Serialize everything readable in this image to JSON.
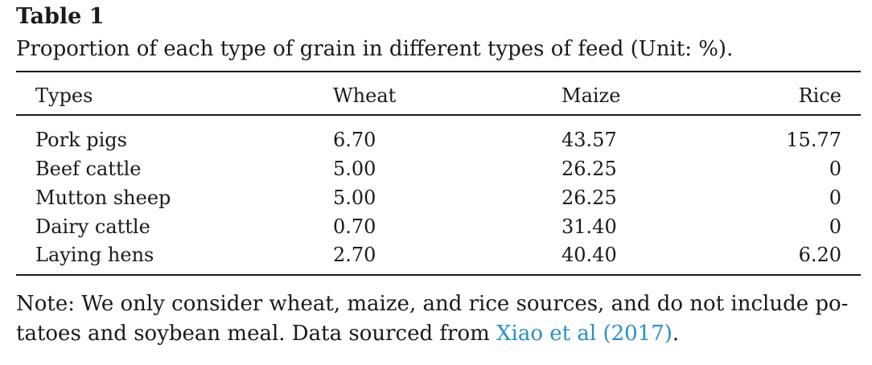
{
  "table": {
    "label": "Table 1",
    "caption": "Proportion of each type of grain in different types of feed (Unit: %).",
    "headers": [
      "Types",
      "Wheat",
      "Maize",
      "Rice"
    ],
    "rows": [
      [
        "Pork pigs",
        "6.70",
        "43.57",
        "15.77"
      ],
      [
        "Beef cattle",
        "5.00",
        "26.25",
        "0"
      ],
      [
        "Mutton sheep",
        "5.00",
        "26.25",
        "0"
      ],
      [
        "Dairy cattle",
        "0.70",
        "31.40",
        "0"
      ],
      [
        "Laying hens",
        "2.70",
        "40.40",
        "6.20"
      ]
    ]
  },
  "note": {
    "line1": "Note: We only consider wheat, maize, and rice sources, and do not include po-",
    "line2_prefix": "tatoes and soybean meal. Data sourced from ",
    "citation": "Xiao et al (2017)",
    "line2_suffix": ".",
    "link_color": "#2b8fc7"
  }
}
